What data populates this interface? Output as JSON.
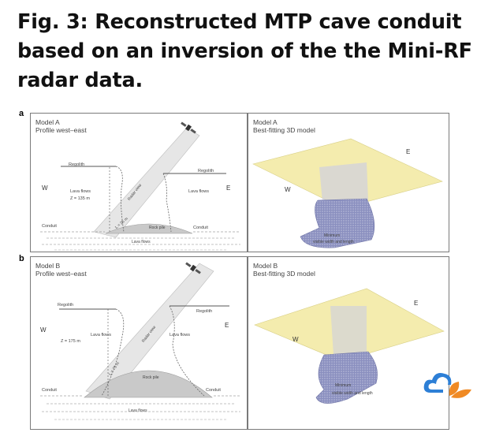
{
  "title": {
    "line1": "Fig. 3: Reconstructed MTP cave conduit",
    "line2": "based on an inversion of the the Mini-RF",
    "line3": "radar data."
  },
  "panel_a": {
    "label": "a",
    "profile": {
      "heading1": "Model A",
      "heading2": "Profile west–east",
      "regolith_left": "Regolith",
      "regolith_right": "Regolith",
      "west": "W",
      "east": "E",
      "lava_flows_left": "Lava flows",
      "depth": "Z = 135 m",
      "lava_flows_right": "Lava flows",
      "radar_view": "Radar view",
      "length": "L = 25 m",
      "conduit_left": "Conduit",
      "conduit_right": "Conduit",
      "rock_pile": "Rock pile",
      "lava_flows_bottom": "Lava flows"
    },
    "model3d": {
      "heading1": "Model A",
      "heading2": "Best-fitting 3D model",
      "east": "E",
      "west": "W",
      "minimum1": "Minimum",
      "minimum2": "visible width and length"
    }
  },
  "panel_b": {
    "label": "b",
    "profile": {
      "heading1": "Model B",
      "heading2": "Profile west–east",
      "regolith_left": "Regolith",
      "regolith_right": "Regolith",
      "west": "W",
      "east": "E",
      "lava_flows_left": "Lava flows",
      "depth": "Z = 175 m",
      "lava_flows_right": "Lava flows",
      "radar_view": "Radar view",
      "length": "L = 75 m",
      "conduit_left": "Conduit",
      "conduit_right": "Conduit",
      "rock_pile": "Rock pile",
      "lava_flows_bottom": "Lava flows"
    },
    "model3d": {
      "heading1": "Model B",
      "heading2": "Best-fitting 3D model",
      "east": "E",
      "west": "W",
      "minimum1": "Minimum",
      "minimum2": "visible width and length"
    }
  },
  "colors": {
    "surface_yellow": "#f4ecae",
    "conduit_blue": "#8a8fbf",
    "rock_pile_gray": "#c8c8c8",
    "radar_beam": "#e8e8e8",
    "logo_blue": "#2d7fd6",
    "logo_orange": "#f08a24"
  },
  "icons": [
    "satellite-icon",
    "cloud-leaf-logo-icon"
  ]
}
